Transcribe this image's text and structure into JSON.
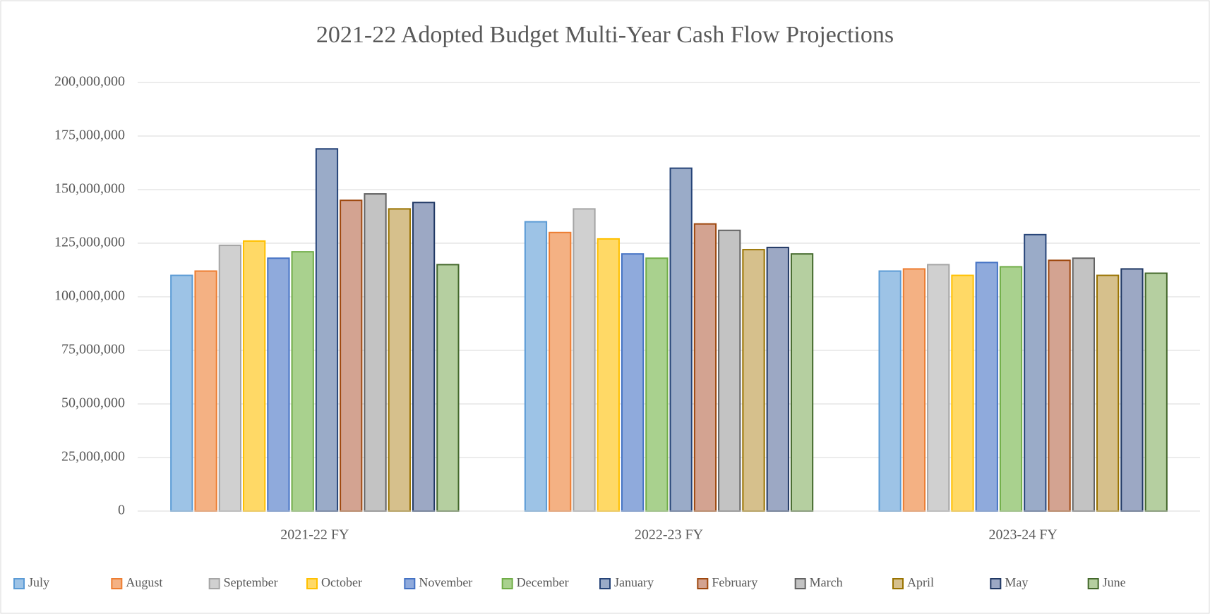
{
  "chart_data": {
    "type": "bar",
    "title": "2021-22  Adopted Budget  Multi-Year  Cash Flow Projections",
    "categories": [
      "2021-22 FY",
      "2022-23 FY",
      "2023-24 FY"
    ],
    "ylim": [
      0,
      200000000
    ],
    "yticks": [
      {
        "value": 0,
        "label": "0"
      },
      {
        "value": 25000000,
        "label": "25,000,000"
      },
      {
        "value": 50000000,
        "label": "50,000,000"
      },
      {
        "value": 75000000,
        "label": "75,000,000"
      },
      {
        "value": 100000000,
        "label": "100,000,000"
      },
      {
        "value": 125000000,
        "label": "125,000,000"
      },
      {
        "value": 150000000,
        "label": "150,000,000"
      },
      {
        "value": 175000000,
        "label": "175,000,000"
      },
      {
        "value": 200000000,
        "label": "200,000,000"
      }
    ],
    "grid": true,
    "legend": "bottom",
    "series": [
      {
        "name": "July",
        "color": "#9dc3e6",
        "edgecolor": "#5b9bd5",
        "values": [
          110000000,
          135000000,
          112000000
        ]
      },
      {
        "name": "August",
        "color": "#f4b183",
        "edgecolor": "#ed7d31",
        "values": [
          112000000,
          130000000,
          113000000
        ]
      },
      {
        "name": "September",
        "color": "#d0d0d0",
        "edgecolor": "#a5a5a5",
        "values": [
          124000000,
          141000000,
          115000000
        ]
      },
      {
        "name": "October",
        "color": "#ffd966",
        "edgecolor": "#ffc000",
        "values": [
          126000000,
          127000000,
          110000000
        ]
      },
      {
        "name": "November",
        "color": "#8faadc",
        "edgecolor": "#4472c4",
        "values": [
          118000000,
          120000000,
          116000000
        ]
      },
      {
        "name": "December",
        "color": "#a9d18e",
        "edgecolor": "#70ad47",
        "values": [
          121000000,
          118000000,
          114000000
        ]
      },
      {
        "name": "January",
        "color": "#9aabc8",
        "edgecolor": "#264478",
        "values": [
          169000000,
          160000000,
          129000000
        ]
      },
      {
        "name": "February",
        "color": "#d3a391",
        "edgecolor": "#9e480e",
        "values": [
          145000000,
          134000000,
          117000000
        ]
      },
      {
        "name": "March",
        "color": "#c3c3c3",
        "edgecolor": "#636363",
        "values": [
          148000000,
          131000000,
          118000000
        ]
      },
      {
        "name": "April",
        "color": "#d6c08c",
        "edgecolor": "#997300",
        "values": [
          141000000,
          122000000,
          110000000
        ]
      },
      {
        "name": "May",
        "color": "#9ca8c4",
        "edgecolor": "#203864",
        "values": [
          144000000,
          123000000,
          113000000
        ]
      },
      {
        "name": "June",
        "color": "#b5cfa0",
        "edgecolor": "#43682b",
        "values": [
          115000000,
          120000000,
          111000000
        ]
      }
    ]
  }
}
